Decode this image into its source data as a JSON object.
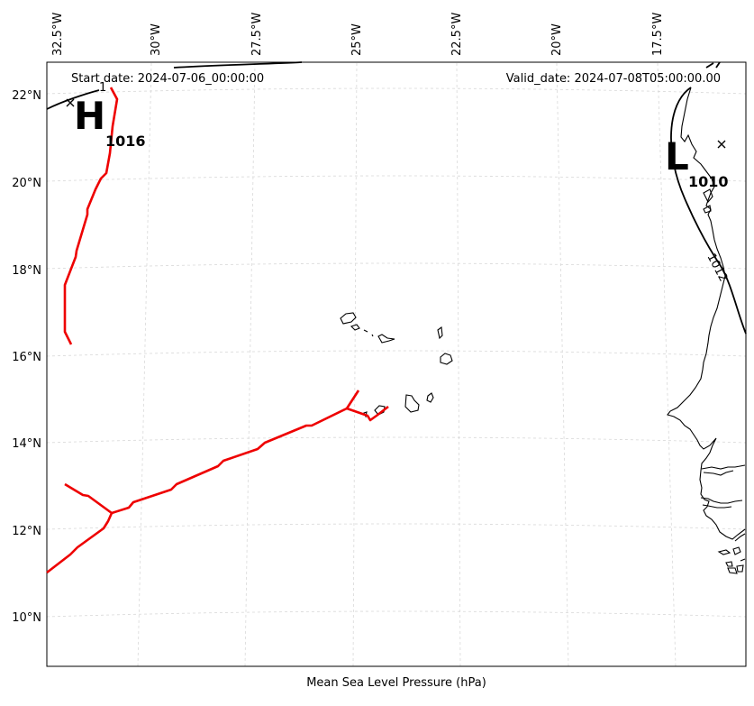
{
  "map": {
    "header": {
      "start": "Start date: 2024-07-06_00:00:00",
      "valid": "Valid_date: 2024-07-08T05:00:00.00"
    },
    "caption": "Mean Sea Level Pressure (hPa)",
    "lon_labels": [
      "32.5°W",
      "30°W",
      "27.5°W",
      "25°W",
      "22.5°W",
      "20°W",
      "17.5°W"
    ],
    "lat_labels": [
      "22°N",
      "20°N",
      "18°N",
      "16°N",
      "14°N",
      "12°N",
      "10°N"
    ],
    "high": {
      "symbol": "H",
      "value": "1016"
    },
    "low": {
      "symbol": "L",
      "value": "1010"
    },
    "isobar_label": "1012",
    "isobar_top_label": "1",
    "colors": {
      "front": "#ee0000",
      "coast": "#000000",
      "grid": "#d8d8d8"
    }
  }
}
